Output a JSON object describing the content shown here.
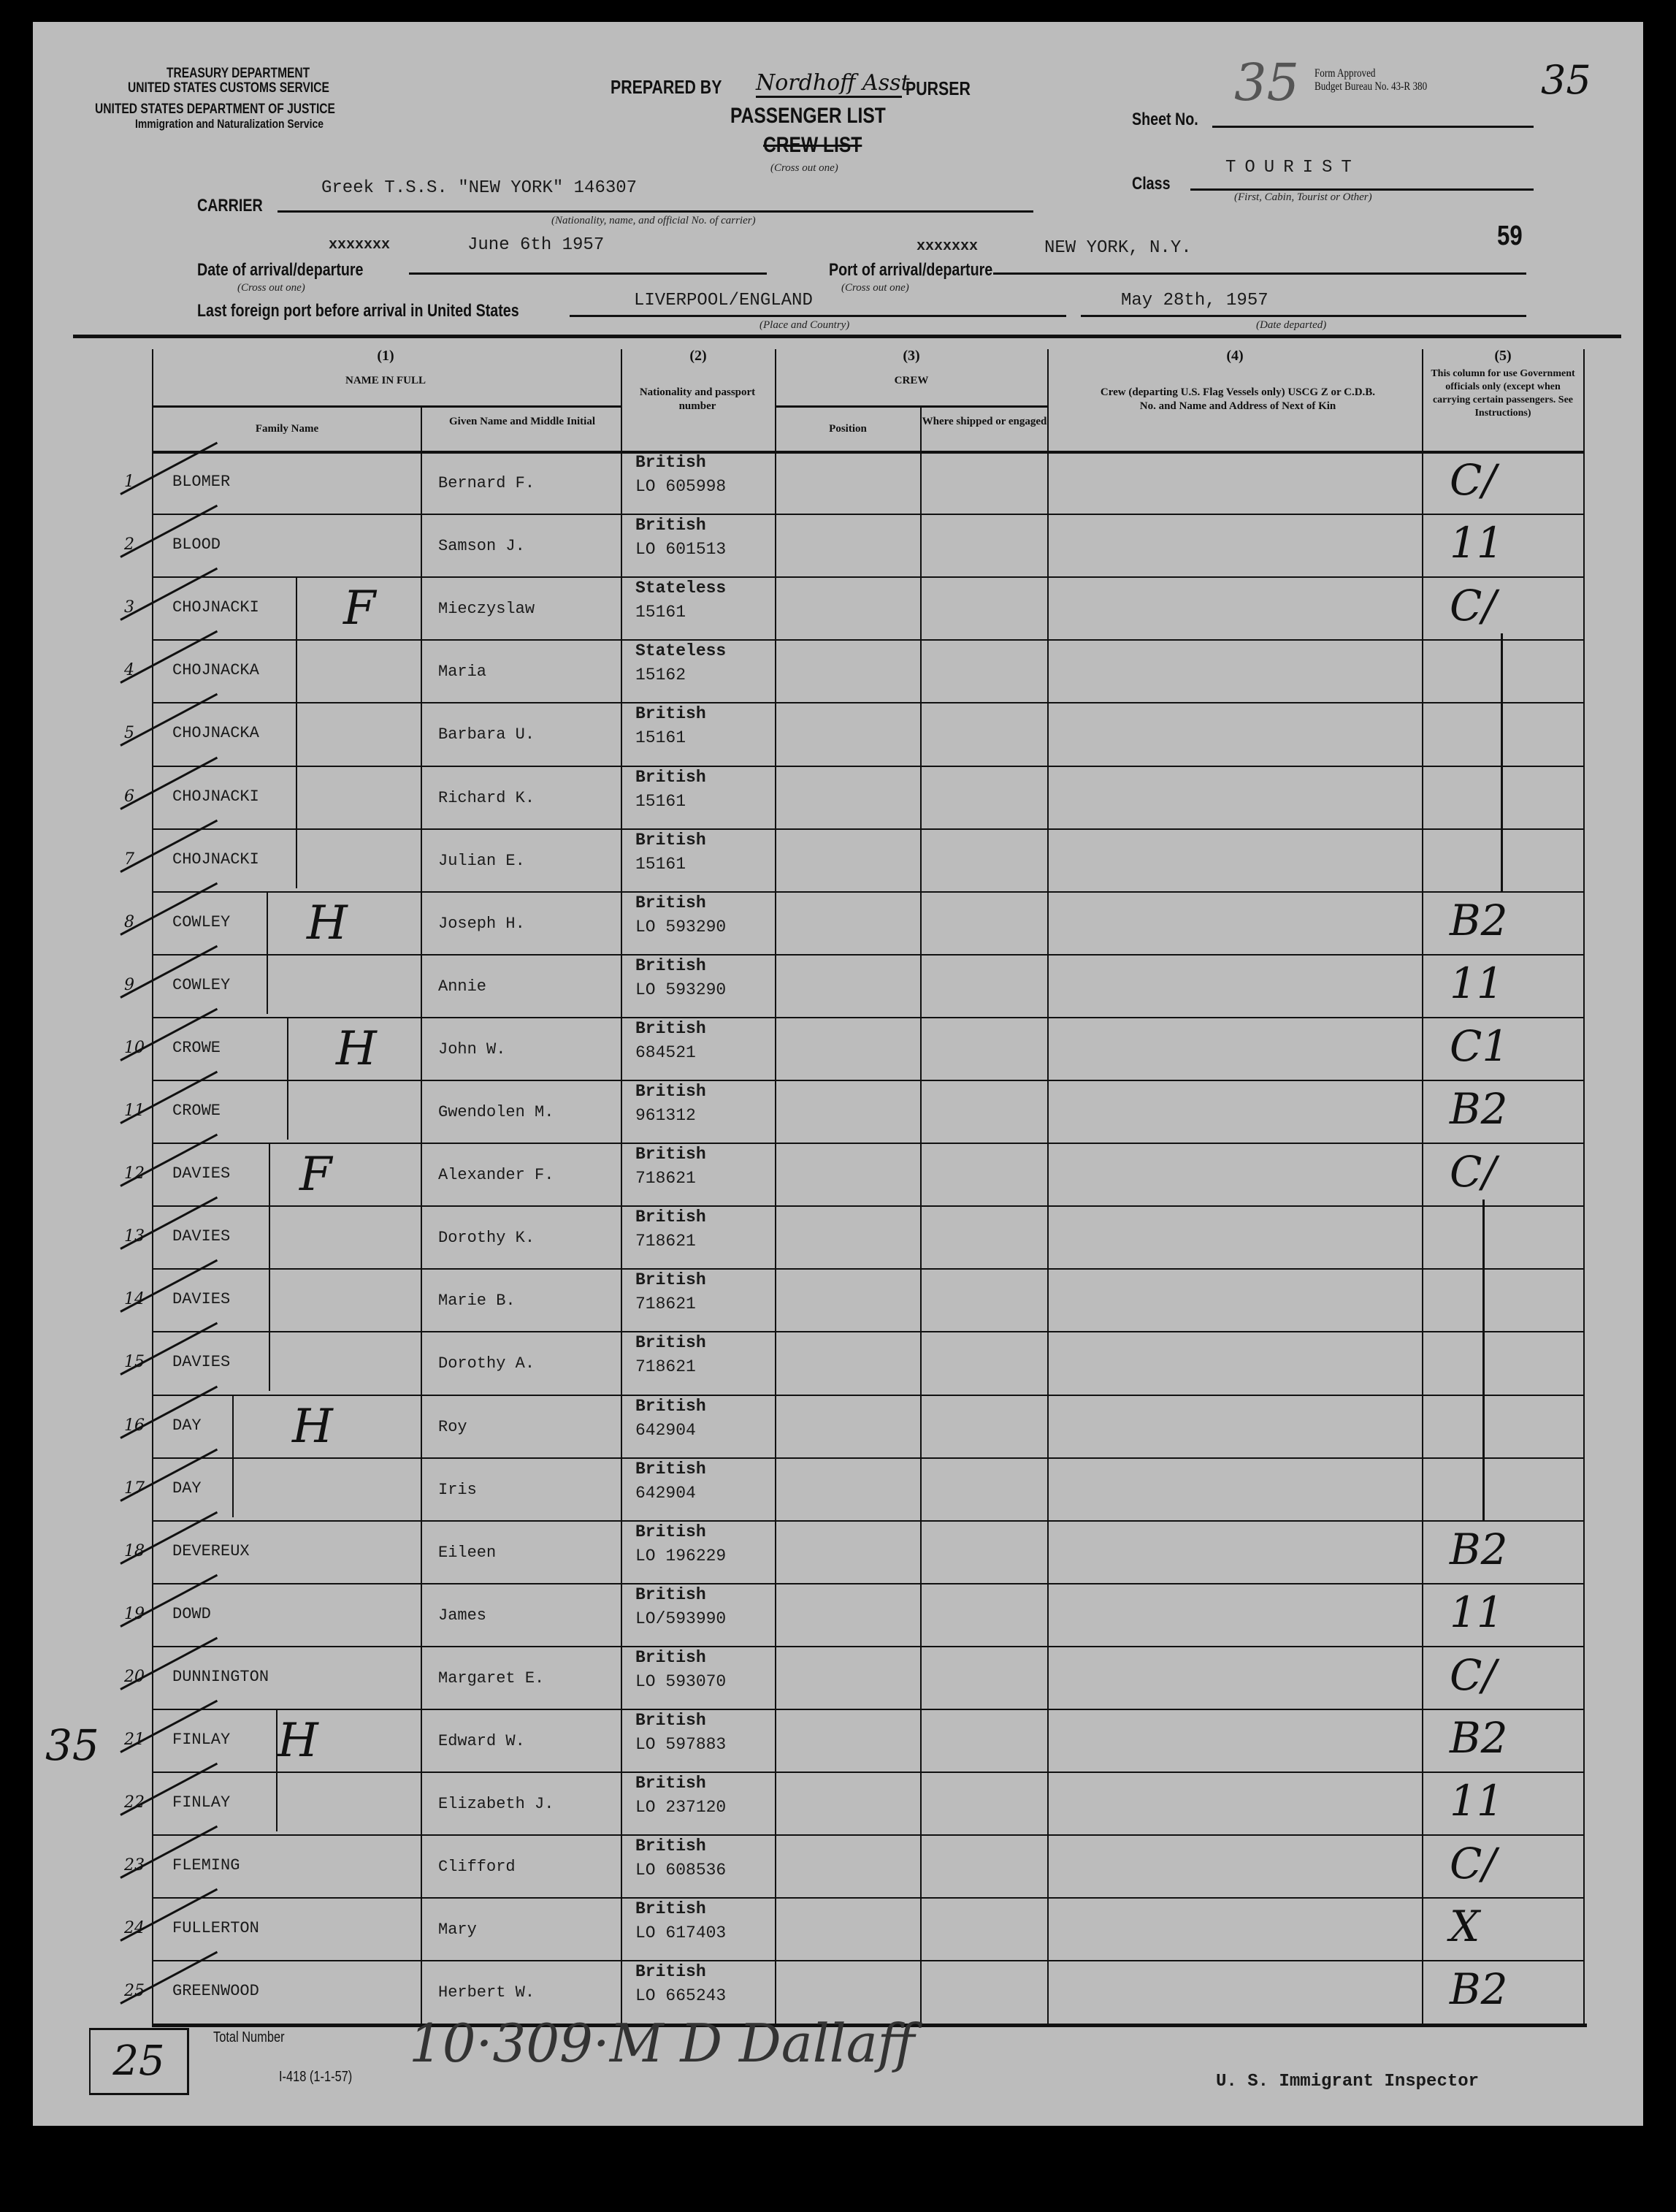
{
  "header": {
    "agency_lines": [
      "TREASURY DEPARTMENT",
      "UNITED STATES CUSTOMS SERVICE",
      "UNITED STATES DEPARTMENT OF JUSTICE",
      "Immigration and Naturalization Service"
    ],
    "prepared_by_label": "PREPARED BY",
    "prepared_by_signature": "Nordhoff Asst.",
    "purser_label": "PURSER",
    "list_type_passenger": "PASSENGER LIST",
    "list_type_crew": "CREW LIST",
    "cross_out_one": "(Cross out one)",
    "form_approved": "Form Approved",
    "budget_bureau": "Budget Bureau No. 43-R 380",
    "sheet_label": "Sheet No.",
    "sheet_number_handwritten": "35",
    "corner_number_handwritten": "35",
    "class_label": "Class",
    "class_value": "TOURIST",
    "class_hint": "(First, Cabin, Tourist or Other)",
    "carrier_label": "CARRIER",
    "carrier_value": "Greek T.S.S. \"NEW YORK\"  146307",
    "carrier_hint": "(Nationality, name, and official No. of carrier)",
    "stamp_number": "59",
    "date_label": "Date of arrival/departure",
    "date_value": "June 6th 1957",
    "date_crossed": "xxxxxxx",
    "port_label": "Port of arrival/departure",
    "port_value": "NEW YORK, N.Y.",
    "port_crossed": "xxxxxxx",
    "last_port_label": "Last foreign port before arrival in United States",
    "last_port_value": "LIVERPOOL/ENGLAND",
    "last_port_hint": "(Place and Country)",
    "date_departed_value": "May 28th, 1957",
    "date_departed_hint": "(Date departed)"
  },
  "columns": {
    "c1_num": "(1)",
    "c1_title": "NAME IN FULL",
    "c1a": "Family Name",
    "c1b": "Given Name and Middle Initial",
    "c2_num": "(2)",
    "c2_title": "Nationality and passport number",
    "c3_num": "(3)",
    "c3_title": "CREW",
    "c3a": "Position",
    "c3b": "Where shipped or engaged",
    "c4_num": "(4)",
    "c4_title": "Crew (departing U.S. Flag Vessels only) USCG Z or C.D.B. No. and Name and Address of Next of Kin",
    "c5_num": "(5)",
    "c5_title": "This column for use Government officials only (except when carrying certain passengers. See Instructions)"
  },
  "rows": [
    {
      "no": "1",
      "family": "BLOMER",
      "given": "Bernard F.",
      "nationality": "British",
      "passport": "LO 605998",
      "mark": "C/"
    },
    {
      "no": "2",
      "family": "BLOOD",
      "given": "Samson J.",
      "nationality": "British",
      "passport": "LO 601513",
      "mark": "11"
    },
    {
      "no": "3",
      "family": "CHOJNACKI",
      "given": "Mieczyslaw",
      "nationality": "Stateless",
      "passport": "15161",
      "mark": "C/"
    },
    {
      "no": "4",
      "family": "CHOJNACKA",
      "given": "Maria",
      "nationality": "Stateless",
      "passport": "15162",
      "mark": ""
    },
    {
      "no": "5",
      "family": "CHOJNACKA",
      "given": "Barbara U.",
      "nationality": "British",
      "passport": "15161",
      "mark": ""
    },
    {
      "no": "6",
      "family": "CHOJNACKI",
      "given": "Richard K.",
      "nationality": "British",
      "passport": "15161",
      "mark": ""
    },
    {
      "no": "7",
      "family": "CHOJNACKI",
      "given": "Julian E.",
      "nationality": "British",
      "passport": "15161",
      "mark": ""
    },
    {
      "no": "8",
      "family": "COWLEY",
      "given": "Joseph H.",
      "nationality": "British",
      "passport": "LO 593290",
      "mark": "B2"
    },
    {
      "no": "9",
      "family": "COWLEY",
      "given": "Annie",
      "nationality": "British",
      "passport": "LO 593290",
      "mark": "11"
    },
    {
      "no": "10",
      "family": "CROWE",
      "given": "John W.",
      "nationality": "British",
      "passport": "684521",
      "mark": "C1"
    },
    {
      "no": "11",
      "family": "CROWE",
      "given": "Gwendolen M.",
      "nationality": "British",
      "passport": "961312",
      "mark": "B2"
    },
    {
      "no": "12",
      "family": "DAVIES",
      "given": "Alexander F.",
      "nationality": "British",
      "passport": "718621",
      "mark": "C/"
    },
    {
      "no": "13",
      "family": "DAVIES",
      "given": "Dorothy K.",
      "nationality": "British",
      "passport": "718621",
      "mark": ""
    },
    {
      "no": "14",
      "family": "DAVIES",
      "given": "Marie B.",
      "nationality": "British",
      "passport": "718621",
      "mark": ""
    },
    {
      "no": "15",
      "family": "DAVIES",
      "given": "Dorothy A.",
      "nationality": "British",
      "passport": "718621",
      "mark": ""
    },
    {
      "no": "16",
      "family": "DAY",
      "given": "Roy",
      "nationality": "British",
      "passport": "642904",
      "mark": ""
    },
    {
      "no": "17",
      "family": "DAY",
      "given": "Iris",
      "nationality": "British",
      "passport": "642904",
      "mark": ""
    },
    {
      "no": "18",
      "family": "DEVEREUX",
      "given": "Eileen",
      "nationality": "British",
      "passport": "LO 196229",
      "mark": "B2"
    },
    {
      "no": "19",
      "family": "DOWD",
      "given": "James",
      "nationality": "British",
      "passport": "LO/593990",
      "mark": "11"
    },
    {
      "no": "20",
      "family": "DUNNINGTON",
      "given": "Margaret E.",
      "nationality": "British",
      "passport": "LO 593070",
      "mark": "C/"
    },
    {
      "no": "21",
      "family": "FINLAY",
      "given": "Edward W.",
      "nationality": "British",
      "passport": "LO 597883",
      "mark": "B2"
    },
    {
      "no": "22",
      "family": "FINLAY",
      "given": "Elizabeth J.",
      "nationality": "British",
      "passport": "LO 237120",
      "mark": "11"
    },
    {
      "no": "23",
      "family": "FLEMING",
      "given": "Clifford",
      "nationality": "British",
      "passport": "LO 608536",
      "mark": "C/"
    },
    {
      "no": "24",
      "family": "FULLERTON",
      "given": "Mary",
      "nationality": "British",
      "passport": "LO 617403",
      "mark": "X"
    },
    {
      "no": "25",
      "family": "GREENWOOD",
      "given": "Herbert W.",
      "nationality": "British",
      "passport": "LO 665243",
      "mark": "B2"
    }
  ],
  "groups": [
    {
      "from": 3,
      "to": 7,
      "code": "F"
    },
    {
      "from": 8,
      "to": 9,
      "code": "H"
    },
    {
      "from": 10,
      "to": 11,
      "code": "H"
    },
    {
      "from": 12,
      "to": 15,
      "code": "F"
    },
    {
      "from": 16,
      "to": 17,
      "code": "H"
    },
    {
      "from": 21,
      "to": 22,
      "code": "H"
    }
  ],
  "margin_note": "35",
  "footer": {
    "total_number": "25",
    "total_label": "Total Number",
    "form_number": "I-418 (1-1-57)",
    "inspector_signature": "10·309·M  D Dallaff",
    "inspector_label": "U. S. Immigrant Inspector"
  }
}
